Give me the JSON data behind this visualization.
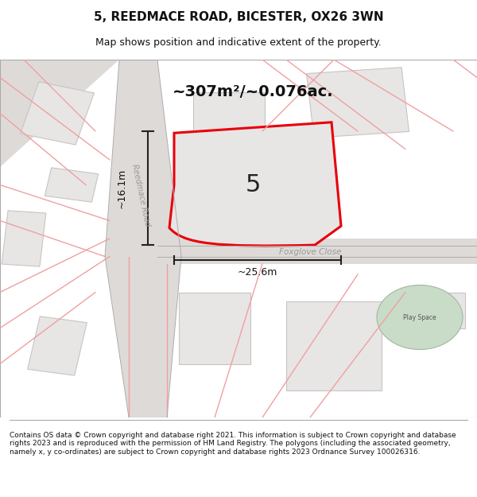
{
  "title": "5, REEDMACE ROAD, BICESTER, OX26 3WN",
  "subtitle": "Map shows position and indicative extent of the property.",
  "footer": "Contains OS data © Crown copyright and database right 2021. This information is subject to Crown copyright and database rights 2023 and is reproduced with the permission of HM Land Registry. The polygons (including the associated geometry, namely x, y co-ordinates) are subject to Crown copyright and database rights 2023 Ordnance Survey 100026316.",
  "area_label": "~307m²/~0.076ac.",
  "property_number": "5",
  "dim_width": "~25.6m",
  "dim_height": "~16.1m",
  "road_label": "Reedmace Road",
  "close_label": "Foxglove Close",
  "play_space_label": "Play Space",
  "bg_color": "#f0eeee",
  "map_bg": "#f5f3f3",
  "road_bg": "#e8e5e5",
  "red_color": "#e8000a",
  "pink_color": "#f5a0a0",
  "dark_gray": "#333333",
  "mid_gray": "#888888",
  "light_gray": "#cccccc",
  "property_fill": "#e8e5e5",
  "green_fill": "#c8dcc8"
}
